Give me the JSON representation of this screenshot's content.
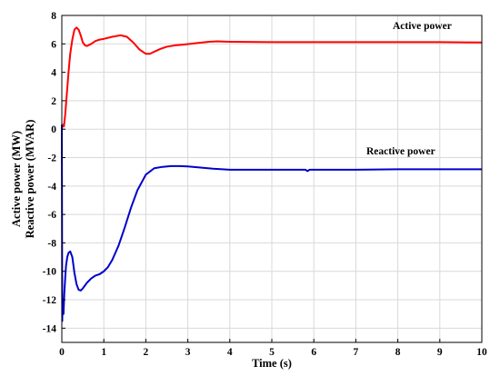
{
  "chart_data": {
    "type": "line",
    "title": "",
    "xlabel": "Time (s)",
    "ylabel_lines": [
      "Active power (MW)",
      "Reactive power (MVAR)"
    ],
    "xlim": [
      0,
      10
    ],
    "ylim": [
      -15,
      8
    ],
    "xticks": [
      "0",
      "1",
      "2",
      "3",
      "4",
      "5",
      "6",
      "7",
      "8",
      "9",
      "10"
    ],
    "yticks": [
      "8",
      "6",
      "4",
      "2",
      "0",
      "-2",
      "-4",
      "-6",
      "-8",
      "-10",
      "-12",
      "-14"
    ],
    "grid": true,
    "series": [
      {
        "name": "Active power",
        "color": "#ff0000",
        "x": [
          0,
          0.02,
          0.05,
          0.08,
          0.12,
          0.16,
          0.2,
          0.25,
          0.3,
          0.35,
          0.4,
          0.45,
          0.5,
          0.55,
          0.6,
          0.7,
          0.8,
          0.9,
          1.0,
          1.2,
          1.4,
          1.55,
          1.7,
          1.85,
          2.0,
          2.1,
          2.2,
          2.35,
          2.5,
          2.7,
          2.9,
          3.2,
          3.5,
          3.7,
          4.0,
          5.0,
          6.0,
          7.0,
          8.0,
          9.0,
          10.0
        ],
        "y": [
          0.0,
          0.3,
          0.2,
          1.0,
          2.5,
          4.0,
          5.3,
          6.3,
          7.0,
          7.15,
          7.0,
          6.6,
          6.1,
          5.9,
          5.85,
          6.0,
          6.2,
          6.3,
          6.35,
          6.5,
          6.6,
          6.5,
          6.1,
          5.6,
          5.3,
          5.3,
          5.45,
          5.65,
          5.8,
          5.9,
          5.95,
          6.05,
          6.15,
          6.18,
          6.15,
          6.12,
          6.12,
          6.12,
          6.12,
          6.12,
          6.1
        ]
      },
      {
        "name": "Reactive power",
        "color": "#0000cc",
        "x": [
          0,
          0.01,
          0.02,
          0.04,
          0.06,
          0.08,
          0.1,
          0.13,
          0.16,
          0.2,
          0.25,
          0.3,
          0.35,
          0.4,
          0.45,
          0.5,
          0.55,
          0.6,
          0.7,
          0.8,
          0.9,
          1.0,
          1.1,
          1.2,
          1.35,
          1.5,
          1.65,
          1.8,
          2.0,
          2.2,
          2.4,
          2.6,
          2.8,
          3.0,
          3.3,
          3.6,
          4.0,
          5.0,
          5.8,
          5.85,
          5.9,
          6.0,
          7.0,
          8.0,
          9.0,
          10.0
        ],
        "y": [
          0.3,
          -13.5,
          -12.0,
          -13.0,
          -11.5,
          -10.5,
          -9.6,
          -9.0,
          -8.7,
          -8.6,
          -9.0,
          -10.1,
          -10.9,
          -11.3,
          -11.35,
          -11.2,
          -11.0,
          -10.8,
          -10.5,
          -10.3,
          -10.2,
          -10.0,
          -9.7,
          -9.2,
          -8.2,
          -6.9,
          -5.5,
          -4.3,
          -3.2,
          -2.75,
          -2.65,
          -2.6,
          -2.6,
          -2.62,
          -2.7,
          -2.78,
          -2.85,
          -2.85,
          -2.85,
          -2.95,
          -2.85,
          -2.85,
          -2.85,
          -2.82,
          -2.82,
          -2.82
        ]
      }
    ]
  }
}
